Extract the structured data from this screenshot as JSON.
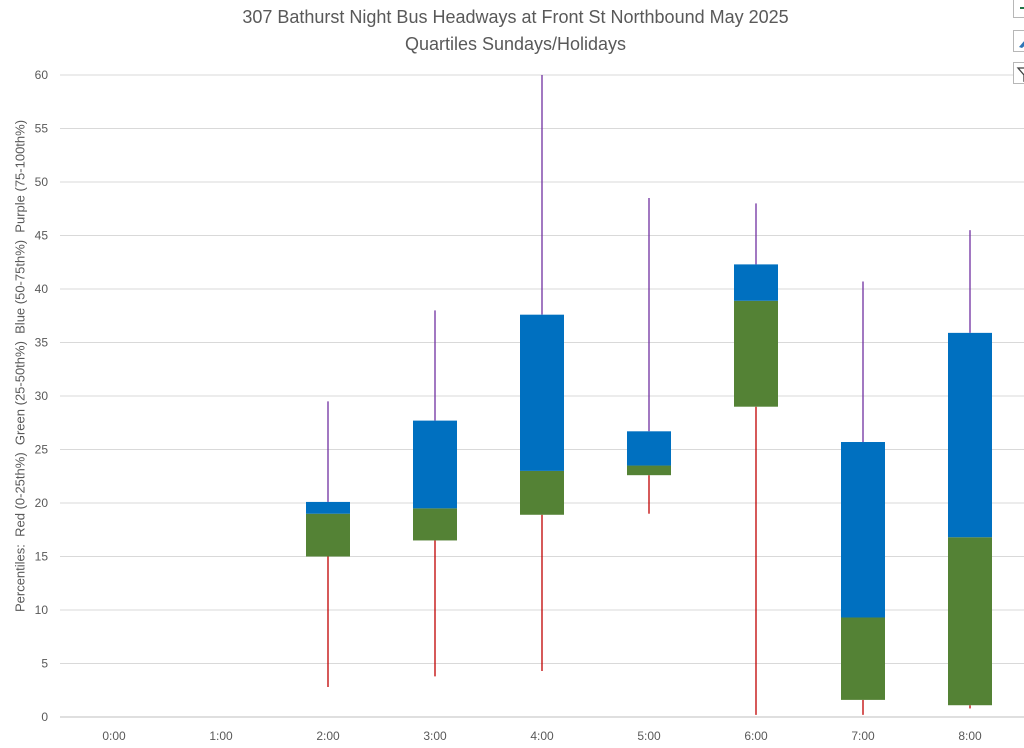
{
  "chart_data": {
    "type": "box",
    "title": "307 Bathurst Night Bus Headways at Front St Northbound May 2025",
    "subtitle": "Quartiles Sundays/Holidays",
    "ylabel": "Percentiles:  Red (0-25th%)  Green (25-50th%)  Blue (50-75th%)  Purple (75-100th%)",
    "xlabel": "",
    "ylim": [
      0,
      60
    ],
    "yticks": [
      0,
      5,
      10,
      15,
      20,
      25,
      30,
      35,
      40,
      45,
      50,
      55,
      60
    ],
    "grid": true,
    "categories": [
      "0:00",
      "1:00",
      "2:00",
      "3:00",
      "4:00",
      "5:00",
      "6:00",
      "7:00",
      "8:00"
    ],
    "boxes": [
      null,
      null,
      {
        "min": 2.8,
        "q1": 15.0,
        "median": 19.0,
        "q3": 20.1,
        "max": 29.5
      },
      {
        "min": 3.8,
        "q1": 16.5,
        "median": 19.5,
        "q3": 27.7,
        "max": 38.0
      },
      {
        "min": 4.3,
        "q1": 18.9,
        "median": 23.0,
        "q3": 37.6,
        "max": 60.0
      },
      {
        "min": 19.0,
        "q1": 22.6,
        "median": 23.5,
        "q3": 26.7,
        "max": 48.5
      },
      {
        "min": 0.2,
        "q1": 29.0,
        "median": 38.9,
        "q3": 42.3,
        "max": 48.0
      },
      {
        "min": 0.2,
        "q1": 1.6,
        "median": 9.3,
        "q3": 25.7,
        "max": 40.7
      },
      {
        "min": 0.8,
        "q1": 1.1,
        "median": 16.8,
        "q3": 35.9,
        "max": 45.5
      }
    ],
    "colors": {
      "lower_whisker": "#c00000",
      "lower_box": "#548235",
      "upper_box": "#0070c0",
      "upper_whisker": "#7030a0",
      "grid": "#d9d9d9",
      "text": "#595959"
    }
  },
  "toolbar": [
    {
      "name": "chart-elements-button",
      "icon": "plus-icon"
    },
    {
      "name": "chart-styles-button",
      "icon": "paintbrush-icon"
    },
    {
      "name": "chart-filters-button",
      "icon": "filter-icon"
    }
  ]
}
